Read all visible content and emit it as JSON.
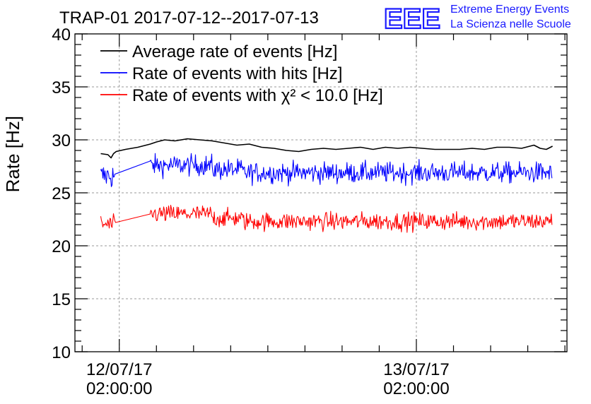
{
  "chart_data": {
    "type": "line",
    "title": "TRAP-01 2017-07-12--2017-07-13",
    "ylabel": "Rate [Hz]",
    "ylim": [
      10,
      40
    ],
    "yticks": [
      10,
      15,
      20,
      25,
      30,
      35,
      40
    ],
    "xlim": [
      "2017-07-11T22:25",
      "2017-07-13T14:10"
    ],
    "xticks": [
      {
        "time": "2017-07-12T02:00",
        "date_label": "12/07/17",
        "time_label": "02:00:00"
      },
      {
        "time": "2017-07-13T02:00",
        "date_label": "13/07/17",
        "time_label": "02:00:00"
      }
    ],
    "grid": true,
    "legend_position": "top-left",
    "legend": [
      {
        "label": "Average rate of events [Hz]",
        "color": "#000000"
      },
      {
        "label": "Rate of events with hits [Hz]",
        "color": "#0000ff"
      },
      {
        "label": "Rate of events with χ² < 10.0 [Hz]",
        "color": "#ff0000"
      }
    ],
    "series": [
      {
        "name": "Average rate of events [Hz]",
        "color": "#000000",
        "style": "smooth",
        "x": [
          "2017-07-12T00:30",
          "2017-07-12T01:05",
          "2017-07-12T01:20",
          "2017-07-12T01:32",
          "2017-07-12T01:45",
          "2017-07-12T02:30",
          "2017-07-12T03:30",
          "2017-07-12T04:30",
          "2017-07-12T05:00",
          "2017-07-12T05:40",
          "2017-07-12T06:30",
          "2017-07-12T07:30",
          "2017-07-12T08:30",
          "2017-07-12T09:30",
          "2017-07-12T10:30",
          "2017-07-12T11:30",
          "2017-07-12T12:30",
          "2017-07-12T13:30",
          "2017-07-12T14:30",
          "2017-07-12T15:30",
          "2017-07-12T16:30",
          "2017-07-12T17:30",
          "2017-07-12T18:30",
          "2017-07-12T19:30",
          "2017-07-12T20:30",
          "2017-07-12T21:30",
          "2017-07-12T22:30",
          "2017-07-12T23:30",
          "2017-07-13T00:30",
          "2017-07-13T01:30",
          "2017-07-13T02:30",
          "2017-07-13T03:30",
          "2017-07-13T04:30",
          "2017-07-13T05:30",
          "2017-07-13T06:30",
          "2017-07-13T07:30",
          "2017-07-13T08:30",
          "2017-07-13T09:30",
          "2017-07-13T10:30",
          "2017-07-13T11:30",
          "2017-07-13T12:00",
          "2017-07-13T12:30",
          "2017-07-13T13:00"
        ],
        "y": [
          28.7,
          28.6,
          28.3,
          28.7,
          28.9,
          29.1,
          29.3,
          29.6,
          29.8,
          30.0,
          29.9,
          30.1,
          30.0,
          29.9,
          29.7,
          29.5,
          29.6,
          29.3,
          29.2,
          29.0,
          28.9,
          29.1,
          29.2,
          29.1,
          29.2,
          29.3,
          29.1,
          29.3,
          29.2,
          29.3,
          29.2,
          29.1,
          29.1,
          29.1,
          29.2,
          29.1,
          29.3,
          29.3,
          29.2,
          29.5,
          29.2,
          29.1,
          29.4
        ]
      },
      {
        "name": "Rate of events with hits [Hz]",
        "color": "#0000ff",
        "style": "noisy",
        "segments": [
          {
            "start": "2017-07-12T00:30",
            "end": "2017-07-12T01:45",
            "mean": 26.6,
            "spread": 0.9,
            "min": 24.6,
            "max": 28.3
          },
          {
            "start": "2017-07-12T01:45",
            "end": "2017-07-12T04:30",
            "mean_start": 25.4,
            "mean_end": 28.0,
            "spread": 0,
            "connector": true
          },
          {
            "start": "2017-07-12T04:30",
            "end": "2017-07-12T09:30",
            "mean": 27.6,
            "spread": 0.7,
            "min": 26.0,
            "max": 29.3
          },
          {
            "start": "2017-07-12T09:30",
            "end": "2017-07-12T12:00",
            "mean": 27.2,
            "spread": 0.7,
            "min": 25.9,
            "max": 28.8
          },
          {
            "start": "2017-07-12T12:00",
            "end": "2017-07-13T13:00",
            "mean": 26.9,
            "spread": 0.7,
            "min": 24.4,
            "max": 28.8
          }
        ]
      },
      {
        "name": "Rate of events with χ² < 10.0 [Hz]",
        "color": "#ff0000",
        "style": "noisy",
        "segments": [
          {
            "start": "2017-07-12T00:30",
            "end": "2017-07-12T01:45",
            "mean": 22.0,
            "spread": 0.6,
            "min": 20.2,
            "max": 23.2
          },
          {
            "start": "2017-07-12T01:45",
            "end": "2017-07-12T04:30",
            "mean_start": 21.2,
            "mean_end": 23.0,
            "spread": 0,
            "connector": true
          },
          {
            "start": "2017-07-12T04:30",
            "end": "2017-07-12T09:30",
            "mean": 23.0,
            "spread": 0.6,
            "min": 21.6,
            "max": 24.6
          },
          {
            "start": "2017-07-12T09:30",
            "end": "2017-07-12T12:00",
            "mean": 22.6,
            "spread": 0.6,
            "min": 21.3,
            "max": 23.9
          },
          {
            "start": "2017-07-12T12:00",
            "end": "2017-07-13T13:00",
            "mean": 22.3,
            "spread": 0.6,
            "min": 20.1,
            "max": 24.1
          }
        ]
      }
    ]
  },
  "logo": {
    "mark": "EEE",
    "line1": "Extreme Energy Events",
    "line2": "La Scienza nelle Scuole",
    "color": "#1a1aff"
  }
}
